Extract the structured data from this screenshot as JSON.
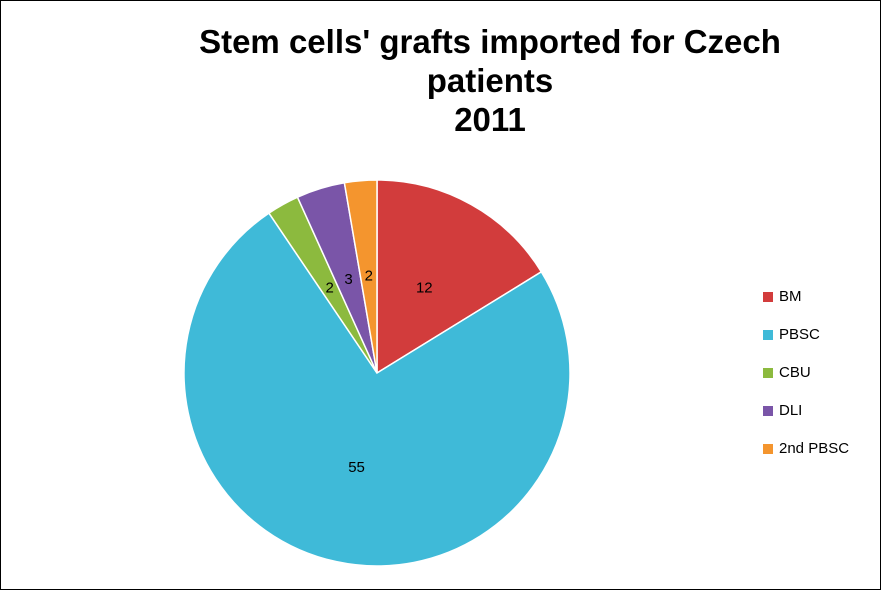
{
  "chart_data": {
    "type": "pie",
    "title": "Stem cells' grafts imported for Czech patients",
    "subtitle": "2011",
    "categories": [
      "BM",
      "PBSC",
      "CBU",
      "DLI",
      "2nd PBSC"
    ],
    "values": [
      12,
      55,
      2,
      3,
      2
    ],
    "colors": [
      "#d23c3c",
      "#3fbad8",
      "#8cba3e",
      "#7a55a8",
      "#f4952e"
    ],
    "legend": "right"
  }
}
